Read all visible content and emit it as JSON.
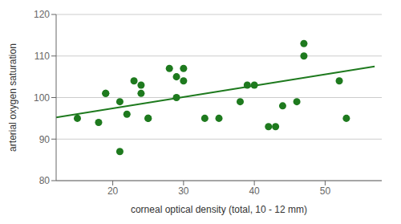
{
  "chart_data": {
    "type": "scatter",
    "xlabel": "corneal optical density (total, 10 - 12 mm)",
    "ylabel": "arterial oxygen saturation",
    "xlim": [
      12,
      58
    ],
    "ylim": [
      80,
      120
    ],
    "xticks": [
      20,
      30,
      40,
      50
    ],
    "yticks": [
      80,
      90,
      100,
      110,
      120
    ],
    "grid": true,
    "series": [
      {
        "type": "scatter",
        "color": "#1e7a1e",
        "x": [
          15,
          18,
          19,
          19,
          21,
          21,
          22,
          23,
          24,
          24,
          25,
          25,
          28,
          29,
          29,
          30,
          30,
          33,
          35,
          38,
          39,
          40,
          42,
          43,
          44,
          46,
          47,
          47,
          52,
          53
        ],
        "values": [
          95,
          94,
          101,
          101,
          99,
          87,
          96,
          104,
          103,
          101,
          95,
          95,
          107,
          100,
          105,
          104,
          107,
          95,
          95,
          99,
          103,
          103,
          93,
          93,
          98,
          99,
          110,
          113,
          104,
          95
        ]
      },
      {
        "type": "line",
        "color": "#1e7a1e",
        "x": [
          12,
          57
        ],
        "values": [
          95.2,
          107.5
        ]
      }
    ]
  }
}
